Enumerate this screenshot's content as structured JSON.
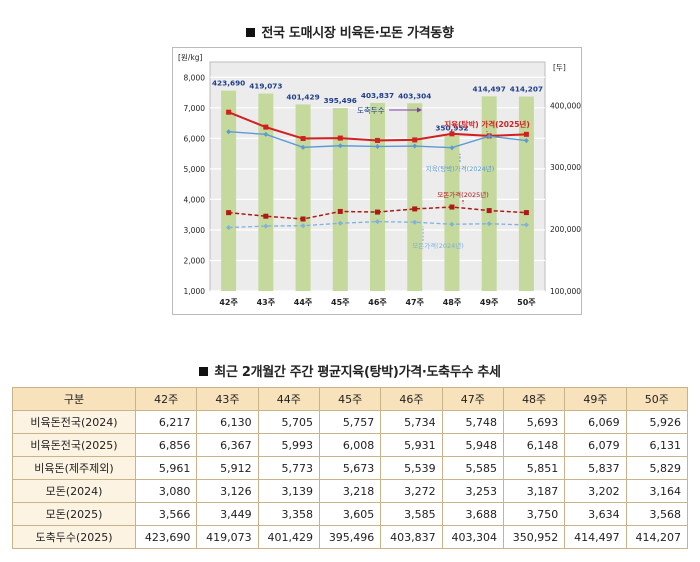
{
  "chart_title": "전국 도매시장 비육돈·모돈 가격동향",
  "table_title": "최근 2개월간 주간 평균지육(탕박)가격·도축두수 추세",
  "chart_data": {
    "type": "bar+line",
    "categories": [
      "42주",
      "43주",
      "44주",
      "45주",
      "46주",
      "47주",
      "48주",
      "49주",
      "50주"
    ],
    "y_left_label": "[원/kg]",
    "y_right_label": "[두]",
    "y_left_ticks": [
      "1,000",
      "2,000",
      "3,000",
      "4,000",
      "5,000",
      "6,000",
      "7,000",
      "8,000"
    ],
    "y_right_ticks": [
      "100,000",
      "200,000",
      "300,000",
      "400,000"
    ],
    "ylim_left": [
      1000,
      8500
    ],
    "ylim_right": [
      100000,
      470000
    ],
    "bars": {
      "name": "도축두수",
      "values": [
        423690,
        419073,
        401429,
        395496,
        403837,
        403304,
        350952,
        414497,
        414207
      ],
      "labels": [
        "423,690",
        "419,073",
        "401,429",
        "395,496",
        "403,837",
        "403,304",
        "350,952",
        "414,497",
        "414,207"
      ]
    },
    "series": [
      {
        "name": "지육(탕박) 가격(2025년)",
        "values": [
          6856,
          6367,
          5993,
          6008,
          5931,
          5948,
          6148,
          6079,
          6131
        ]
      },
      {
        "name": "지육(탕박)가격(2024년)",
        "values": [
          6217,
          6130,
          5705,
          5757,
          5734,
          5748,
          5693,
          6069,
          5926
        ]
      },
      {
        "name": "모돈가격(2025년)",
        "values": [
          3566,
          3449,
          3358,
          3605,
          3585,
          3688,
          3750,
          3634,
          3568
        ]
      },
      {
        "name": "모돈가격(2024년)",
        "values": [
          3080,
          3126,
          3139,
          3218,
          3272,
          3253,
          3187,
          3202,
          3164
        ]
      }
    ],
    "annotations": {
      "bars_label": "도축두수",
      "price2025_label": "지육(탕박) 가격(2025년)",
      "price2024_label": "지육(탕박)가격(2024년)",
      "sow2025_label": "모돈가격(2025년)",
      "sow2024_label": "모돈가격(2024년)"
    }
  },
  "table": {
    "headers": [
      "구분",
      "42주",
      "43주",
      "44주",
      "45주",
      "46주",
      "47주",
      "48주",
      "49주",
      "50주"
    ],
    "rows": [
      {
        "label": "비육돈전국(2024)",
        "values": [
          "6,217",
          "6,130",
          "5,705",
          "5,757",
          "5,734",
          "5,748",
          "5,693",
          "6,069",
          "5,926"
        ]
      },
      {
        "label": "비육돈전국(2025)",
        "values": [
          "6,856",
          "6,367",
          "5,993",
          "6,008",
          "5,931",
          "5,948",
          "6,148",
          "6,079",
          "6,131"
        ]
      },
      {
        "label": "비육돈(제주제외)",
        "values": [
          "5,961",
          "5,912",
          "5,773",
          "5,673",
          "5,539",
          "5,585",
          "5,851",
          "5,837",
          "5,829"
        ]
      },
      {
        "label": "모돈(2024)",
        "values": [
          "3,080",
          "3,126",
          "3,139",
          "3,218",
          "3,272",
          "3,253",
          "3,187",
          "3,202",
          "3,164"
        ]
      },
      {
        "label": "모돈(2025)",
        "values": [
          "3,566",
          "3,449",
          "3,358",
          "3,605",
          "3,585",
          "3,688",
          "3,750",
          "3,634",
          "3,568"
        ]
      },
      {
        "label": "도축두수(2025)",
        "values": [
          "423,690",
          "419,073",
          "401,429",
          "395,496",
          "403,837",
          "403,304",
          "350,952",
          "414,497",
          "414,207"
        ]
      }
    ]
  },
  "colors": {
    "bar": "#c4d99b",
    "price2025": "#d21f1f",
    "price2024": "#5b9bd5",
    "sow2025": "#b01818",
    "sow2024": "#7fb0de",
    "bar_label": "#1f3e8c",
    "arrow_purple": "#7b3fa6"
  }
}
